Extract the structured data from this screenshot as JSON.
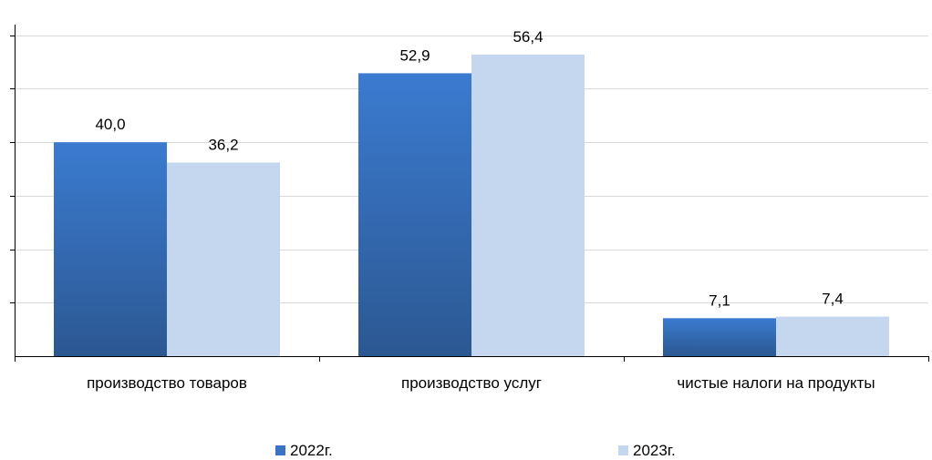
{
  "chart_data": {
    "type": "bar",
    "categories": [
      "производство товаров",
      "производство услуг",
      "чистые налоги на продукты"
    ],
    "series": [
      {
        "name": "2022г.",
        "values": [
          40.0,
          52.9,
          7.1
        ],
        "labels": [
          "40,0",
          "52,9",
          "7,1"
        ],
        "color": "#3a73c4",
        "color_dark": "#2f5b96"
      },
      {
        "name": "2023г.",
        "values": [
          36.2,
          56.4,
          7.4
        ],
        "labels": [
          "36,2",
          "56,4",
          "7,4"
        ],
        "color": "#c5d7ee"
      }
    ],
    "ylim": [
      0,
      62
    ],
    "ytick_step": 10,
    "grid": true,
    "legend_position": "bottom",
    "title": "",
    "xlabel": "",
    "ylabel": ""
  }
}
